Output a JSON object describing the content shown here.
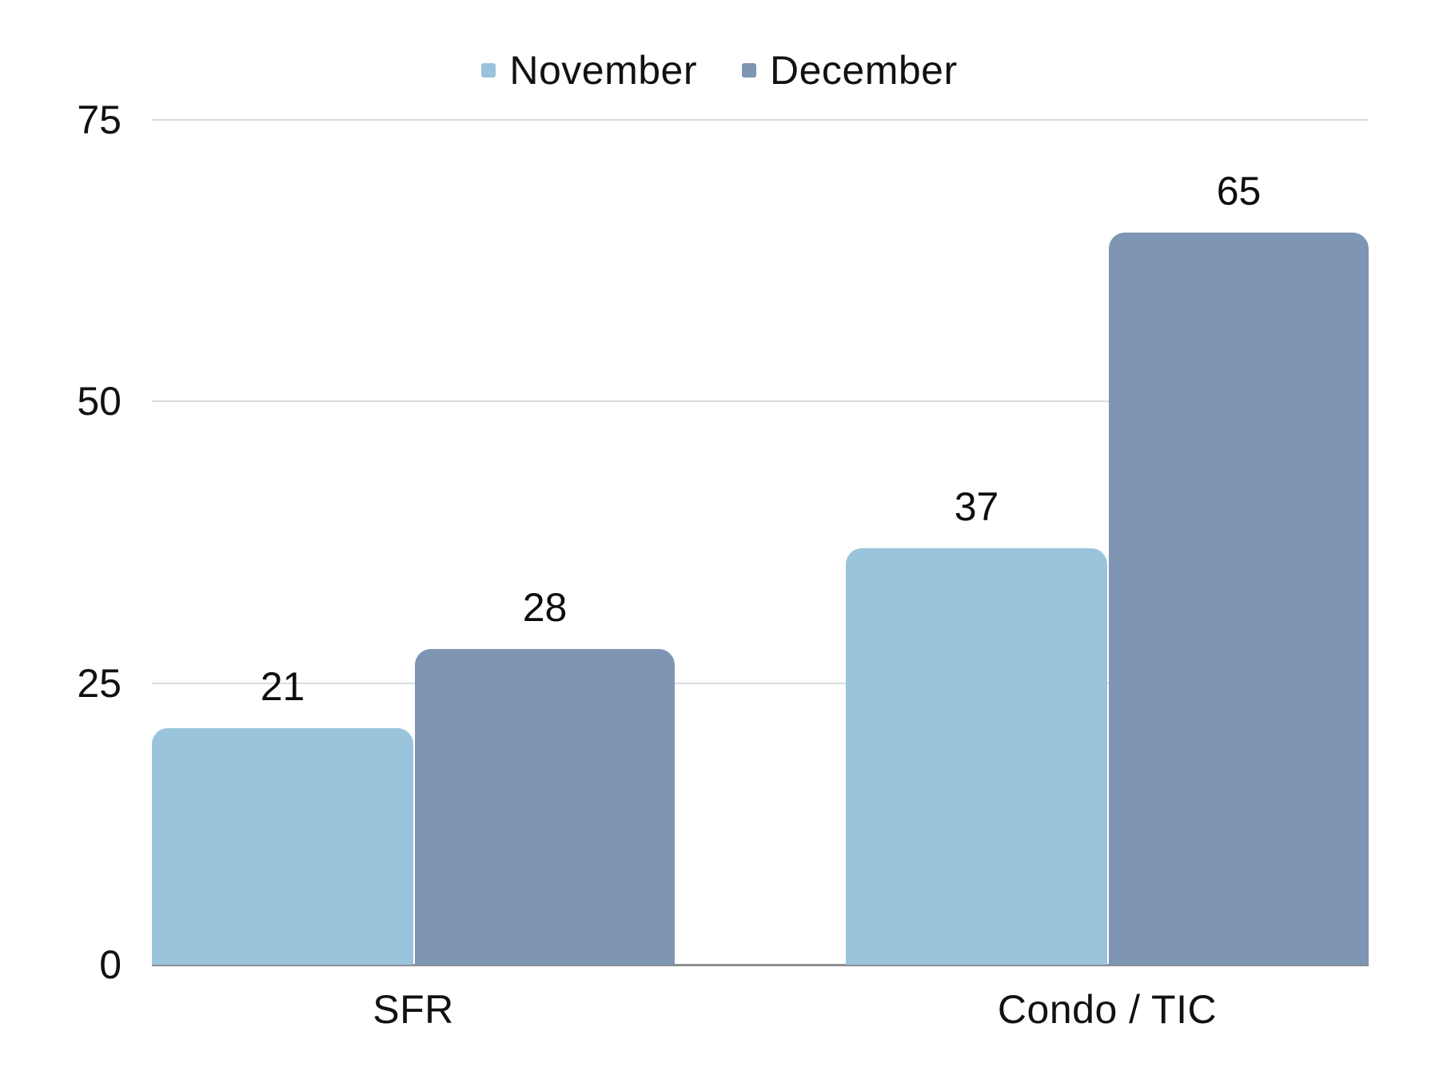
{
  "chart_data": {
    "type": "bar",
    "categories": [
      "SFR",
      "Condo / TIC"
    ],
    "series": [
      {
        "name": "November",
        "color": "#9ac3dc",
        "values": [
          21,
          37
        ]
      },
      {
        "name": "December",
        "color": "#7e95b3",
        "values": [
          28,
          65
        ]
      }
    ],
    "title": "",
    "xlabel": "",
    "ylabel": "",
    "ylim": [
      0,
      75
    ],
    "yticks": [
      0,
      25,
      50,
      75
    ],
    "grid": true,
    "legend_position": "top",
    "data_labels": true,
    "gridline_color": "#d9dcde",
    "axis_line_color": "#8e8e8e",
    "label_color": "#111111",
    "background_color": "#ffffff"
  }
}
